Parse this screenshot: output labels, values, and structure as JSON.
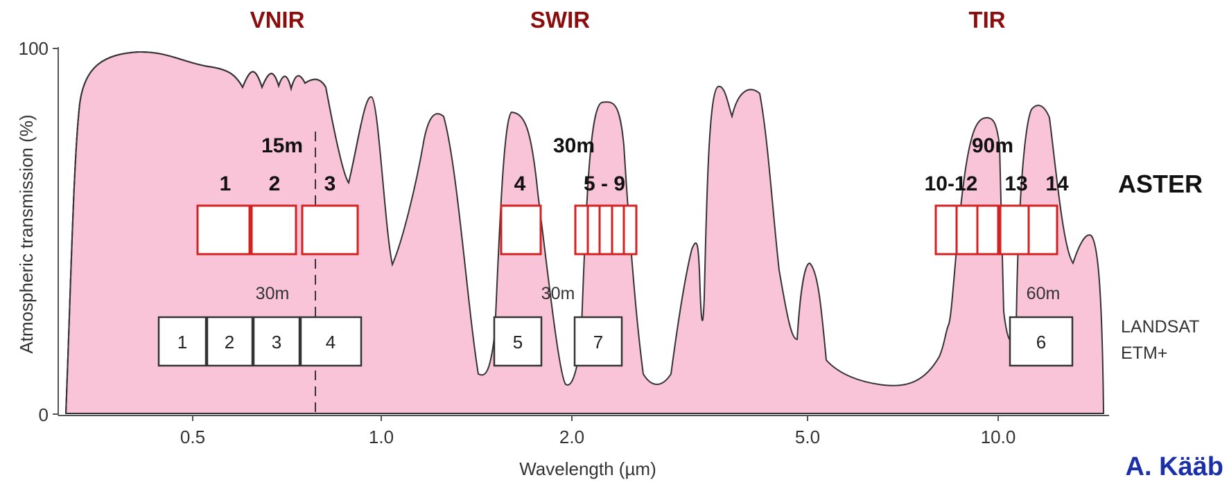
{
  "regions": [
    "VNIR",
    "SWIR",
    "TIR"
  ],
  "y_axis": {
    "label": "Atmospheric transmission (%)",
    "ticks": [
      "0",
      "100"
    ]
  },
  "x_axis": {
    "label": "Wavelength (µm)",
    "ticks": [
      "0.5",
      "1.0",
      "2.0",
      "5.0",
      "10.0"
    ]
  },
  "aster": {
    "sensor": "ASTER",
    "resolutions": [
      "15m",
      "30m",
      "90m"
    ],
    "band_labels": [
      "1",
      "2",
      "3",
      "4",
      "5 - 9",
      "10-12",
      "13",
      "14"
    ]
  },
  "landsat": {
    "sensor_line1": "LANDSAT",
    "sensor_line2": "ETM+",
    "resolutions": [
      "30m",
      "30m",
      "60m"
    ],
    "band_labels": [
      "1",
      "2",
      "3",
      "4",
      "5",
      "7",
      "6"
    ]
  },
  "author": "A. Kääb",
  "colors": {
    "region_label": "#8b0d0d",
    "aster_box": "#d42020",
    "spectrum_fill": "#f9c3d8",
    "author": "#1a2fa8"
  }
}
